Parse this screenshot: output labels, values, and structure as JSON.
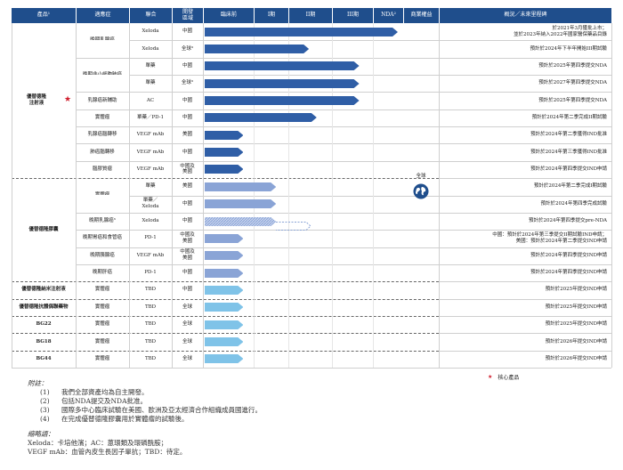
{
  "headers": [
    "產品¹",
    "適應症",
    "聯合",
    "開發\n區域",
    "臨床前",
    "I期",
    "II期",
    "III期",
    "NDA²",
    "商業權益",
    "概況／未來里程碑"
  ],
  "global_rights": "全球",
  "rows": [
    {
      "indication": "晚期乳腺癌",
      "combo": "Xeloda",
      "region": "中國",
      "status": "於2021年3月獲批上市；\n並於2023年納入2022年國家醫保藥品目錄",
      "progress": 1.0,
      "style": "dark"
    },
    {
      "indication": "",
      "combo": "Xeloda",
      "region": "全球³",
      "status": "預計於2024年下半年開始III期試驗",
      "progress": 0.54,
      "style": "dark"
    },
    {
      "indication": "晚期非小細胞肺癌",
      "combo": "單藥",
      "region": "中國",
      "status": "預計於2025年第四季提交NDA",
      "progress": 0.8,
      "style": "dark"
    },
    {
      "indication": "",
      "combo": "單藥",
      "region": "全球³",
      "status": "預計於2027年第四季提交NDA",
      "progress": 0.8,
      "style": "dark"
    },
    {
      "indication": "乳腺癌新輔助",
      "combo": "AC",
      "region": "中國",
      "status": "預計於2025年第四季提交NDA",
      "progress": 0.8,
      "style": "dark"
    },
    {
      "indication": "實體瘤",
      "combo": "單藥／PD-1",
      "region": "中國",
      "status": "預計於2024年第二季完成II期試驗",
      "progress": 0.58,
      "style": "dark"
    },
    {
      "indication": "乳腺癌腦轉移",
      "combo": "VEGF mAb",
      "region": "美國",
      "status": "預計於2024年第二季獲得IND批准",
      "progress": 0.2,
      "style": "dark"
    },
    {
      "indication": "肺癌腦轉移",
      "combo": "VEGF mAb",
      "region": "中國",
      "status": "預計於2024年第三季獲得IND批准",
      "progress": 0.2,
      "style": "dark"
    },
    {
      "indication": "腦膠質瘤",
      "combo": "VEGF mAb",
      "region": "中國及\n美國",
      "status": "預計於2024年第四季提交IND申請",
      "progress": 0.2,
      "style": "dark"
    },
    {
      "indication": "實體瘤",
      "combo": "單藥",
      "region": "美國",
      "status": "預計於2024年第二季完成I期試驗",
      "progress": 0.37,
      "style": "mid"
    },
    {
      "indication": "",
      "combo": "單藥／\nXeloda",
      "region": "中國",
      "status": "預計於2024年第四季完成試驗",
      "progress": 0.37,
      "style": "mid"
    },
    {
      "indication": "晚期乳腺癌³",
      "combo": "Xeloda",
      "region": "中國",
      "status": "預計於2024年第四季提交pre-NDA",
      "progress": 0.37,
      "style": "hatch"
    },
    {
      "indication": "晚期胃癌和食管癌",
      "combo": "PD-1",
      "region": "中國及\n美國",
      "status": "中國：預計於2024年第三季提交II期試驗IND申請；\n美國：預計於2024年第二季提交IND申請",
      "progress": 0.2,
      "style": "mid"
    },
    {
      "indication": "晚期胰腺癌",
      "combo": "VEGF mAb",
      "region": "中國及\n美國",
      "status": "預計於2024年第四季提交IND申請",
      "progress": 0.2,
      "style": "mid"
    },
    {
      "indication": "晚期肝癌",
      "combo": "PD-1",
      "region": "中國",
      "status": "預計於2024年第四季提交IND申請",
      "progress": 0.2,
      "style": "mid"
    },
    {
      "indication": "實體瘤",
      "combo": "TBD",
      "region": "中國",
      "status": "預計於2025年提交IND申請",
      "progress": 0.2,
      "style": "light"
    },
    {
      "indication": "實體瘤",
      "combo": "TBD",
      "region": "全球",
      "status": "預計於2025年提交IND申請",
      "progress": 0.2,
      "style": "light"
    },
    {
      "indication": "實體瘤",
      "combo": "TBD",
      "region": "全球",
      "status": "預計於2025年提交IND申請",
      "progress": 0.2,
      "style": "light"
    },
    {
      "indication": "實體瘤",
      "combo": "TBD",
      "region": "全球",
      "status": "預計於2026年提交IND申請",
      "progress": 0.2,
      "style": "light"
    },
    {
      "indication": "實體瘤",
      "combo": "TBD",
      "region": "全球",
      "status": "預計於2026年提交IND申請",
      "progress": 0.2,
      "style": "light"
    }
  ],
  "products": [
    "優替德隆\n注射液",
    "優替德隆膠囊",
    "優替德隆納米注射液",
    "優替德隆抗體偶聯藥物",
    "BG22",
    "BG18",
    "BG44"
  ],
  "colors": {
    "header": "#1f4e8c",
    "dark": "#2f5ea6",
    "mid": "#8aa4d6",
    "light": "#7fc3e8",
    "star": "#d01f2e"
  },
  "legend": "核心產品",
  "notes_title": "附註：",
  "notes": [
    {
      "num": "(1)",
      "text": "我們全部資產均為自主開發。"
    },
    {
      "num": "(2)",
      "text": "包括NDA提交及NDA批准。"
    },
    {
      "num": "(3)",
      "text": "國際多中心臨床試驗在美國、歐洲及亞太經濟合作組織成員國進行。"
    },
    {
      "num": "(4)",
      "text": "在完成優替德隆膠囊用於實體瘤的試驗後。"
    }
  ],
  "abbr_title": "縮略語：",
  "abbr": [
    "Xeloda：卡培他濱；AC：蒽環類及環磷酰胺；",
    "VEGF mAb：血管內皮生長因子單抗；TBD：待定。"
  ]
}
